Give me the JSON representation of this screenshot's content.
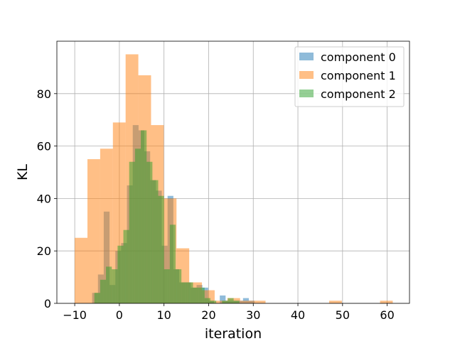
{
  "chart_data": {
    "type": "histogram",
    "title": "",
    "xlabel": "iteration",
    "ylabel": "KL",
    "xlim": [
      -14,
      65
    ],
    "ylim": [
      0,
      100
    ],
    "xticks": [
      -10,
      0,
      10,
      20,
      30,
      40,
      50,
      60
    ],
    "yticks": [
      0,
      20,
      40,
      60,
      80
    ],
    "grid": true,
    "legend_position": "top-right",
    "series": [
      {
        "name": "component 0",
        "color": "#1f77b4",
        "bin_width": 1.3,
        "bins": [
          {
            "x0": -6.1,
            "count": 4
          },
          {
            "x0": -4.8,
            "count": 11
          },
          {
            "x0": -3.5,
            "count": 35
          },
          {
            "x0": -2.2,
            "count": 7
          },
          {
            "x0": -0.9,
            "count": 20
          },
          {
            "x0": 0.4,
            "count": 23
          },
          {
            "x0": 1.7,
            "count": 45
          },
          {
            "x0": 3.0,
            "count": 68
          },
          {
            "x0": 4.3,
            "count": 66
          },
          {
            "x0": 5.6,
            "count": 58
          },
          {
            "x0": 6.9,
            "count": 47
          },
          {
            "x0": 8.2,
            "count": 43
          },
          {
            "x0": 9.5,
            "count": 22
          },
          {
            "x0": 10.8,
            "count": 41
          },
          {
            "x0": 12.1,
            "count": 13
          },
          {
            "x0": 13.4,
            "count": 8
          },
          {
            "x0": 14.7,
            "count": 8
          },
          {
            "x0": 16.0,
            "count": 6
          },
          {
            "x0": 17.3,
            "count": 7
          },
          {
            "x0": 18.6,
            "count": 6
          },
          {
            "x0": 19.9,
            "count": 1
          },
          {
            "x0": 21.2,
            "count": 0
          },
          {
            "x0": 22.5,
            "count": 3
          },
          {
            "x0": 23.8,
            "count": 1
          },
          {
            "x0": 25.1,
            "count": 1
          },
          {
            "x0": 26.4,
            "count": 1
          },
          {
            "x0": 27.7,
            "count": 2
          },
          {
            "x0": 29.0,
            "count": 1
          }
        ]
      },
      {
        "name": "component 1",
        "color": "#ff7f0e",
        "bin_width": 2.85,
        "bins": [
          {
            "x0": -10.0,
            "count": 25
          },
          {
            "x0": -7.15,
            "count": 55
          },
          {
            "x0": -4.3,
            "count": 59
          },
          {
            "x0": -1.45,
            "count": 69
          },
          {
            "x0": 1.4,
            "count": 95
          },
          {
            "x0": 4.25,
            "count": 87
          },
          {
            "x0": 7.1,
            "count": 68
          },
          {
            "x0": 9.95,
            "count": 40
          },
          {
            "x0": 12.8,
            "count": 21
          },
          {
            "x0": 15.65,
            "count": 8
          },
          {
            "x0": 18.5,
            "count": 5
          },
          {
            "x0": 21.35,
            "count": 1
          },
          {
            "x0": 24.2,
            "count": 2
          },
          {
            "x0": 27.05,
            "count": 1
          },
          {
            "x0": 29.9,
            "count": 1
          },
          {
            "x0": 32.75,
            "count": 0
          },
          {
            "x0": 35.6,
            "count": 0
          },
          {
            "x0": 38.45,
            "count": 0
          },
          {
            "x0": 41.3,
            "count": 0
          },
          {
            "x0": 44.15,
            "count": 0
          },
          {
            "x0": 47.0,
            "count": 1
          },
          {
            "x0": 49.85,
            "count": 0
          },
          {
            "x0": 52.7,
            "count": 0
          },
          {
            "x0": 55.55,
            "count": 0
          },
          {
            "x0": 58.4,
            "count": 1
          }
        ]
      },
      {
        "name": "component 2",
        "color": "#2ca02c",
        "bin_width": 1.3,
        "bins": [
          {
            "x0": -5.6,
            "count": 4
          },
          {
            "x0": -4.3,
            "count": 9
          },
          {
            "x0": -3.0,
            "count": 14
          },
          {
            "x0": -1.7,
            "count": 13
          },
          {
            "x0": -0.4,
            "count": 22
          },
          {
            "x0": 0.9,
            "count": 28
          },
          {
            "x0": 2.2,
            "count": 54
          },
          {
            "x0": 3.5,
            "count": 59
          },
          {
            "x0": 4.8,
            "count": 66
          },
          {
            "x0": 6.1,
            "count": 54
          },
          {
            "x0": 7.4,
            "count": 47
          },
          {
            "x0": 8.7,
            "count": 41
          },
          {
            "x0": 10.0,
            "count": 13
          },
          {
            "x0": 11.3,
            "count": 30
          },
          {
            "x0": 12.6,
            "count": 13
          },
          {
            "x0": 13.9,
            "count": 8
          },
          {
            "x0": 15.2,
            "count": 8
          },
          {
            "x0": 16.5,
            "count": 6
          },
          {
            "x0": 17.8,
            "count": 6
          },
          {
            "x0": 19.1,
            "count": 2
          },
          {
            "x0": 20.4,
            "count": 1
          },
          {
            "x0": 21.7,
            "count": 0
          },
          {
            "x0": 23.0,
            "count": 1
          },
          {
            "x0": 24.3,
            "count": 2
          },
          {
            "x0": 25.6,
            "count": 1
          }
        ]
      }
    ]
  }
}
